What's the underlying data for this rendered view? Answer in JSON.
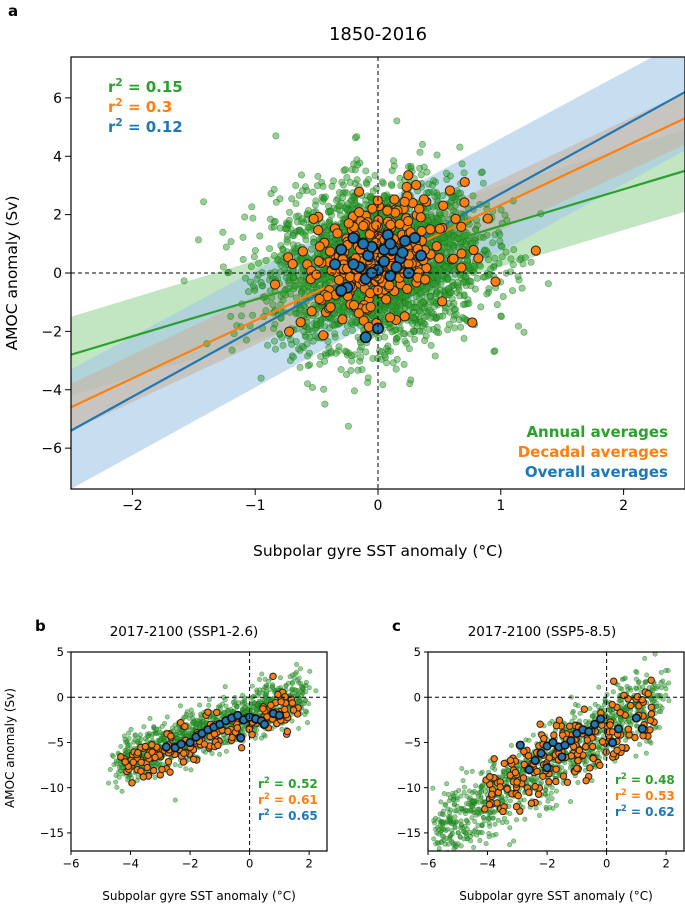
{
  "colors": {
    "annual": "#2ca02c",
    "decadal": "#ff7f0e",
    "overall": "#1f77b4",
    "annual_band": "#9fd89f",
    "overall_band": "#a9cbe8",
    "decadal_band": "#c8b09a"
  },
  "chart_data": [
    {
      "panel_label": "a",
      "type": "scatter",
      "title": "1850-2016",
      "xlabel": "Subpolar gyre SST anomaly (°C)",
      "ylabel": "AMOC anomaly (Sv)",
      "xlim": [
        -2.5,
        2.5
      ],
      "ylim": [
        -7.4,
        7.4
      ],
      "xticks": [
        -2,
        -1,
        0,
        1,
        2
      ],
      "yticks": [
        -6,
        -4,
        -2,
        0,
        2,
        4,
        6
      ],
      "xtick_labels": [
        "−2",
        "−1",
        "0",
        "1",
        "2"
      ],
      "ytick_labels": [
        "−6",
        "−4",
        "−2",
        "0",
        "2",
        "4",
        "6"
      ],
      "reference_lines": {
        "x": 0,
        "y": 0
      },
      "stats": [
        {
          "series": "annual",
          "label": "r",
          "sup": "2",
          "value": " = 0.15"
        },
        {
          "series": "decadal",
          "label": "r",
          "sup": "2",
          "value": " = 0.3"
        },
        {
          "series": "overall",
          "label": "r",
          "sup": "2",
          "value": " = 0.12"
        }
      ],
      "legend": [
        "Annual averages",
        "Decadal averages",
        "Overall averages"
      ],
      "legend_position": "lower-right",
      "stats_position": "upper-left",
      "series": [
        {
          "name": "Annual averages",
          "key": "annual",
          "n": 3000,
          "center": [
            0.0,
            0.3
          ],
          "spread": [
            0.42,
            1.35
          ],
          "slope": 0.9
        },
        {
          "name": "Decadal averages",
          "key": "decadal",
          "n": 300,
          "center": [
            0.0,
            0.5
          ],
          "spread": [
            0.3,
            0.95
          ],
          "slope": 1.6
        },
        {
          "name": "Overall averages",
          "key": "overall",
          "points": [
            [
              -0.3,
              0.8
            ],
            [
              -0.2,
              1.2
            ],
            [
              -0.15,
              0.2
            ],
            [
              -0.08,
              0.6
            ],
            [
              -0.1,
              -0.2
            ],
            [
              0.0,
              0.1
            ],
            [
              0.05,
              0.4
            ],
            [
              0.08,
              1.3
            ],
            [
              0.12,
              0.8
            ],
            [
              0.18,
              0.5
            ],
            [
              0.22,
              1.1
            ],
            [
              0.1,
              -0.1
            ],
            [
              -0.25,
              -0.5
            ],
            [
              0.35,
              0.6
            ],
            [
              -0.05,
              0.9
            ],
            [
              0.0,
              -1.9
            ],
            [
              -0.1,
              -2.2
            ],
            [
              -0.3,
              -0.6
            ],
            [
              0.15,
              0.2
            ],
            [
              -0.12,
              1.0
            ],
            [
              0.05,
              0.8
            ],
            [
              -0.2,
              0.3
            ],
            [
              0.25,
              0.0
            ],
            [
              0.3,
              1.2
            ],
            [
              -0.05,
              0.0
            ],
            [
              0.2,
              0.7
            ],
            [
              0.1,
              1.0
            ],
            [
              -0.35,
              0.3
            ]
          ]
        }
      ],
      "fits": [
        {
          "key": "annual",
          "x": [
            -2.5,
            2.5
          ],
          "y": [
            -2.8,
            3.5
          ],
          "band_lower": [
            -4.2,
            2.1
          ],
          "band_upper": [
            -1.5,
            4.9
          ]
        },
        {
          "key": "overall",
          "x": [
            -2.5,
            2.5
          ],
          "y": [
            -5.4,
            6.2
          ],
          "band_lower": [
            -7.4,
            4.2
          ],
          "band_upper": [
            -3.3,
            8.0
          ]
        },
        {
          "key": "decadal",
          "x": [
            -2.5,
            2.5
          ],
          "y": [
            -4.6,
            5.3
          ],
          "band_lower": [
            -5.4,
            4.4
          ],
          "band_upper": [
            -3.8,
            6.2
          ]
        }
      ]
    },
    {
      "panel_label": "b",
      "type": "scatter",
      "title": "2017-2100 (SSP1-2.6)",
      "xlabel": "Subpolar gyre SST anomaly (°C)",
      "ylabel": "AMOC anomaly (Sv)",
      "xlim": [
        -6,
        2.6
      ],
      "ylim": [
        -17,
        5
      ],
      "xticks": [
        -6,
        -4,
        -2,
        0,
        2
      ],
      "yticks": [
        -15,
        -10,
        -5,
        0,
        5
      ],
      "xtick_labels": [
        "−6",
        "−4",
        "−2",
        "0",
        "2"
      ],
      "ytick_labels": [
        "−15",
        "−10",
        "−5",
        "0",
        "5"
      ],
      "reference_lines": {
        "x": 0,
        "y": 0
      },
      "stats": [
        {
          "series": "annual",
          "label": "r",
          "sup": "2",
          "value": " = 0.52"
        },
        {
          "series": "decadal",
          "label": "r",
          "sup": "2",
          "value": " = 0.61"
        },
        {
          "series": "overall",
          "label": "r",
          "sup": "2",
          "value": " = 0.65"
        }
      ],
      "stats_position": "lower-right",
      "series": [
        {
          "name": "Annual averages",
          "key": "annual",
          "n": 1100,
          "xrange": [
            -4.5,
            1.9
          ],
          "line": [
            [
              -4.5,
              -7.5
            ],
            [
              1.9,
              0.5
            ]
          ],
          "spread": 1.3
        },
        {
          "name": "Decadal averages",
          "key": "decadal",
          "n": 180,
          "xrange": [
            -4.2,
            1.6
          ],
          "line": [
            [
              -4.2,
              -7.6
            ],
            [
              1.6,
              -0.8
            ]
          ],
          "spread": 1.1
        },
        {
          "name": "Overall averages",
          "key": "overall",
          "points": [
            [
              -2.8,
              -5.5
            ],
            [
              -2.5,
              -5.6
            ],
            [
              -2.0,
              -5.0
            ],
            [
              -1.8,
              -4.4
            ],
            [
              -1.6,
              -4.0
            ],
            [
              -1.4,
              -3.6
            ],
            [
              -1.2,
              -3.3
            ],
            [
              -1.0,
              -3.0
            ],
            [
              -0.8,
              -2.6
            ],
            [
              -0.6,
              -2.3
            ],
            [
              -0.4,
              -2.0
            ],
            [
              -0.2,
              -2.5
            ],
            [
              0.0,
              -2.2
            ],
            [
              0.2,
              -2.4
            ],
            [
              0.4,
              -2.6
            ],
            [
              0.5,
              -3.0
            ],
            [
              0.8,
              -1.8
            ],
            [
              1.0,
              -2.0
            ],
            [
              -0.3,
              -4.5
            ],
            [
              -2.3,
              -5.2
            ]
          ]
        }
      ]
    },
    {
      "panel_label": "c",
      "type": "scatter",
      "title": "2017-2100 (SSP5-8.5)",
      "xlabel": "Subpolar gyre SST anomaly (°C)",
      "ylabel": "",
      "xlim": [
        -6,
        2.6
      ],
      "ylim": [
        -17,
        5
      ],
      "xticks": [
        -6,
        -4,
        -2,
        0,
        2
      ],
      "yticks": [
        -15,
        -10,
        -5,
        0,
        5
      ],
      "xtick_labels": [
        "−6",
        "−4",
        "−2",
        "0",
        "2"
      ],
      "ytick_labels": [
        "−15",
        "−10",
        "−5",
        "0",
        "5"
      ],
      "reference_lines": {
        "x": 0,
        "y": 0
      },
      "stats": [
        {
          "series": "annual",
          "label": "r",
          "sup": "2",
          "value": " = 0.48"
        },
        {
          "series": "decadal",
          "label": "r",
          "sup": "2",
          "value": " = 0.53"
        },
        {
          "series": "overall",
          "label": "r",
          "sup": "2",
          "value": " = 0.62"
        }
      ],
      "stats_position": "lower-right",
      "series": [
        {
          "name": "Annual averages",
          "key": "annual",
          "n": 1100,
          "xrange": [
            -5.7,
            1.9
          ],
          "line": [
            [
              -5.7,
              -15.0
            ],
            [
              1.9,
              0.5
            ]
          ],
          "spread": 2.0
        },
        {
          "name": "Decadal averages",
          "key": "decadal",
          "n": 200,
          "xrange": [
            -4.0,
            1.6
          ],
          "line": [
            [
              -4.0,
              -10.5
            ],
            [
              1.6,
              -1.5
            ]
          ],
          "spread": 1.8
        },
        {
          "name": "Overall averages",
          "key": "overall",
          "points": [
            [
              -2.9,
              -5.3
            ],
            [
              -2.6,
              -8.0
            ],
            [
              -2.4,
              -7.0
            ],
            [
              -2.2,
              -6.2
            ],
            [
              -2.0,
              -5.4
            ],
            [
              -1.8,
              -5.0
            ],
            [
              -1.6,
              -5.5
            ],
            [
              -1.4,
              -5.3
            ],
            [
              -1.2,
              -4.8
            ],
            [
              -1.0,
              -4.0
            ],
            [
              -0.8,
              -3.6
            ],
            [
              -0.6,
              -3.8
            ],
            [
              -0.4,
              -3.0
            ],
            [
              -0.2,
              -2.4
            ],
            [
              0.2,
              -5.0
            ],
            [
              0.4,
              -3.5
            ],
            [
              1.0,
              -2.3
            ],
            [
              1.2,
              -3.5
            ],
            [
              -2.0,
              -7.8
            ],
            [
              -1.5,
              -6.6
            ]
          ]
        }
      ]
    }
  ]
}
